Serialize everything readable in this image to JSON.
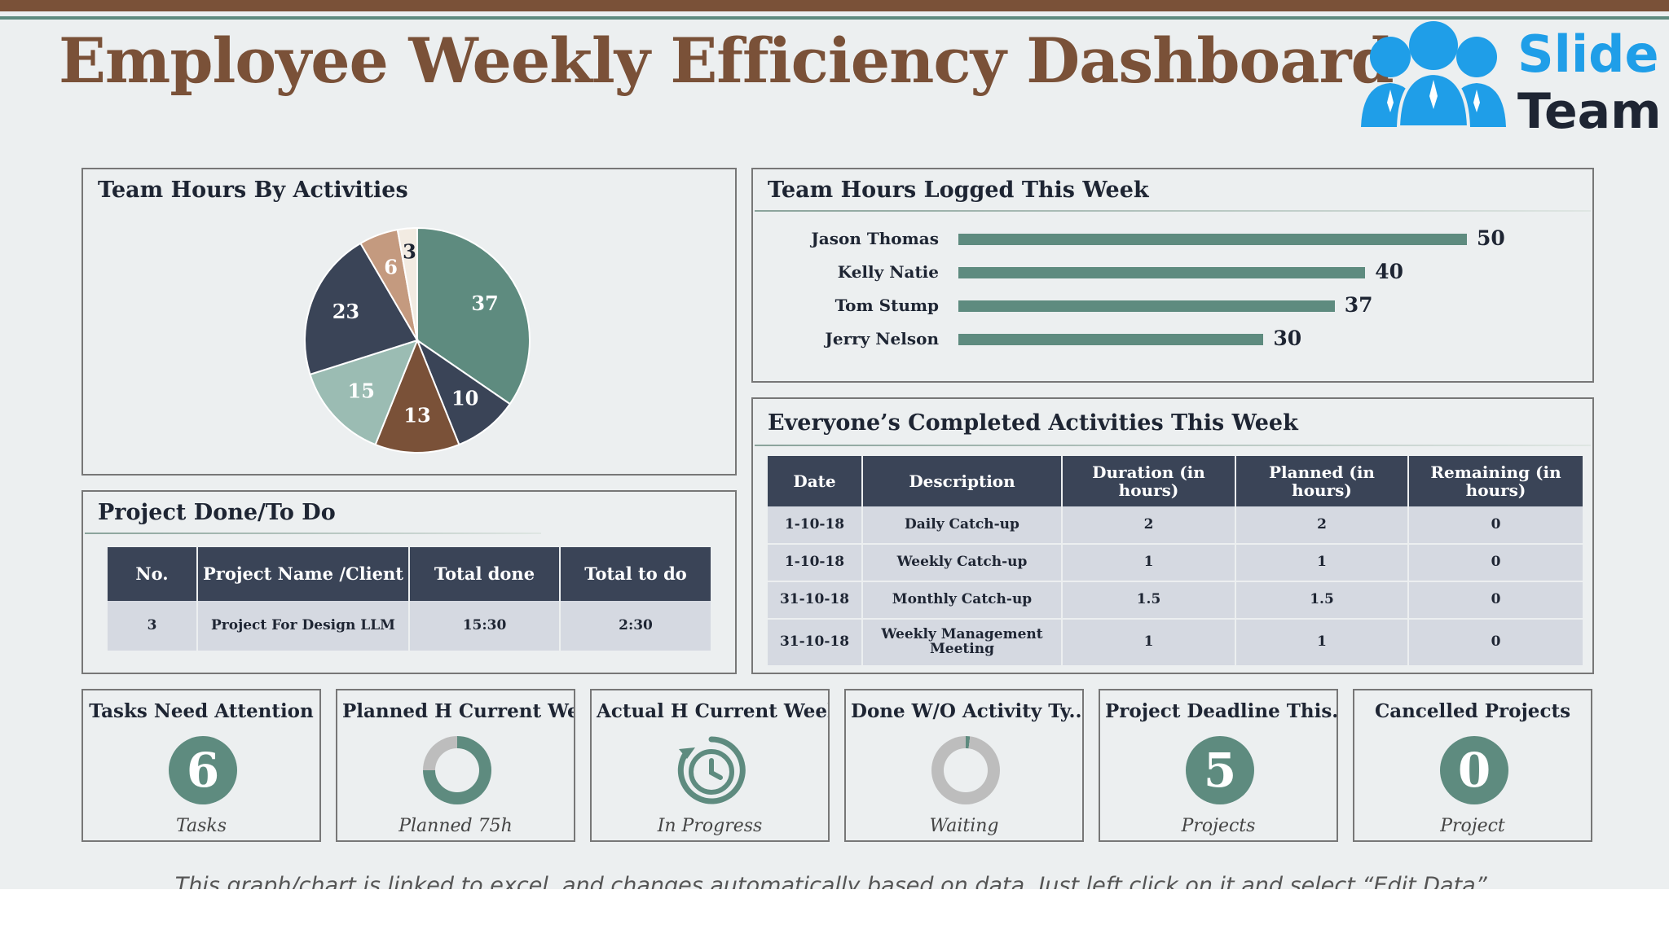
{
  "title": "Employee Weekly Efficiency Dashboard",
  "logo": {
    "line1": "Slide",
    "line2": "Team",
    "icon": "people-group-icon",
    "icon_color": "#1f9ee8"
  },
  "colors": {
    "accent": "#5e8b7f",
    "brown": "#7a5138",
    "navy": "#3a4457",
    "light_teal": "#9bbcb3",
    "tan": "#c49a7f",
    "cream": "#f2ebe2"
  },
  "pie_panel": {
    "title": "Team Hours By Activities"
  },
  "bars_panel": {
    "title": "Team Hours Logged This Week"
  },
  "activities_panel": {
    "title": "Everyone’s Completed Activities This Week",
    "columns": [
      "Date",
      "Description",
      "Duration (in hours)",
      "Planned (in hours)",
      "Remaining (in hours)"
    ],
    "rows": [
      [
        "1-10-18",
        "Daily Catch-up",
        "2",
        "2",
        "0"
      ],
      [
        "1-10-18",
        "Weekly Catch-up",
        "1",
        "1",
        "0"
      ],
      [
        "31-10-18",
        "Monthly Catch-up",
        "1.5",
        "1.5",
        "0"
      ],
      [
        "31-10-18",
        "Weekly Management Meeting",
        "1",
        "1",
        "0"
      ]
    ]
  },
  "projects_panel": {
    "title": "Project Done/To Do",
    "columns": [
      "No.",
      "Project Name /Client",
      "Total done",
      "Total to do"
    ],
    "rows": [
      [
        "3",
        "Project For Design LLM",
        "15:30",
        "2:30"
      ]
    ]
  },
  "kpis": [
    {
      "title": "Tasks Need Attention",
      "value": "6",
      "subtitle": "Tasks",
      "icon": "number-circle"
    },
    {
      "title": "Planned H Current Week",
      "value": "",
      "subtitle": "Planned 75h",
      "icon": "donut-progress-icon",
      "progress": 0.75
    },
    {
      "title": "Actual H Current Week",
      "value": "",
      "subtitle": "In Progress",
      "icon": "timer-refresh-icon"
    },
    {
      "title": "Done W/O Activity Ty....",
      "value": "",
      "subtitle": "Waiting",
      "icon": "donut-progress-icon",
      "progress": 0.02
    },
    {
      "title": "Project Deadline This...",
      "value": "5",
      "subtitle": "Projects",
      "icon": "number-circle"
    },
    {
      "title": "Cancelled Projects",
      "value": "0",
      "subtitle": "Project",
      "icon": "number-circle"
    }
  ],
  "footnote": "This graph/chart is linked to excel, and changes automatically based on data. Just left click on it and select “Edit Data”.",
  "chart_data": [
    {
      "type": "pie",
      "title": "Team Hours By Activities",
      "values": [
        37,
        10,
        13,
        15,
        23,
        6,
        3
      ],
      "colors": [
        "#5e8b7f",
        "#3a4457",
        "#7a5138",
        "#9bbcb3",
        "#3a4457",
        "#c49a7f",
        "#f2ebe2"
      ],
      "label_colors": [
        "#ffffff",
        "#ffffff",
        "#ffffff",
        "#ffffff",
        "#ffffff",
        "#ffffff",
        "#1e2533"
      ]
    },
    {
      "type": "bar",
      "orientation": "horizontal",
      "title": "Team Hours Logged This Week",
      "categories": [
        "Jason Thomas",
        "Kelly Natie",
        "Tom Stump",
        "Jerry Nelson"
      ],
      "values": [
        50,
        40,
        37,
        30
      ],
      "xlim": [
        0,
        50
      ],
      "grid": false
    }
  ]
}
